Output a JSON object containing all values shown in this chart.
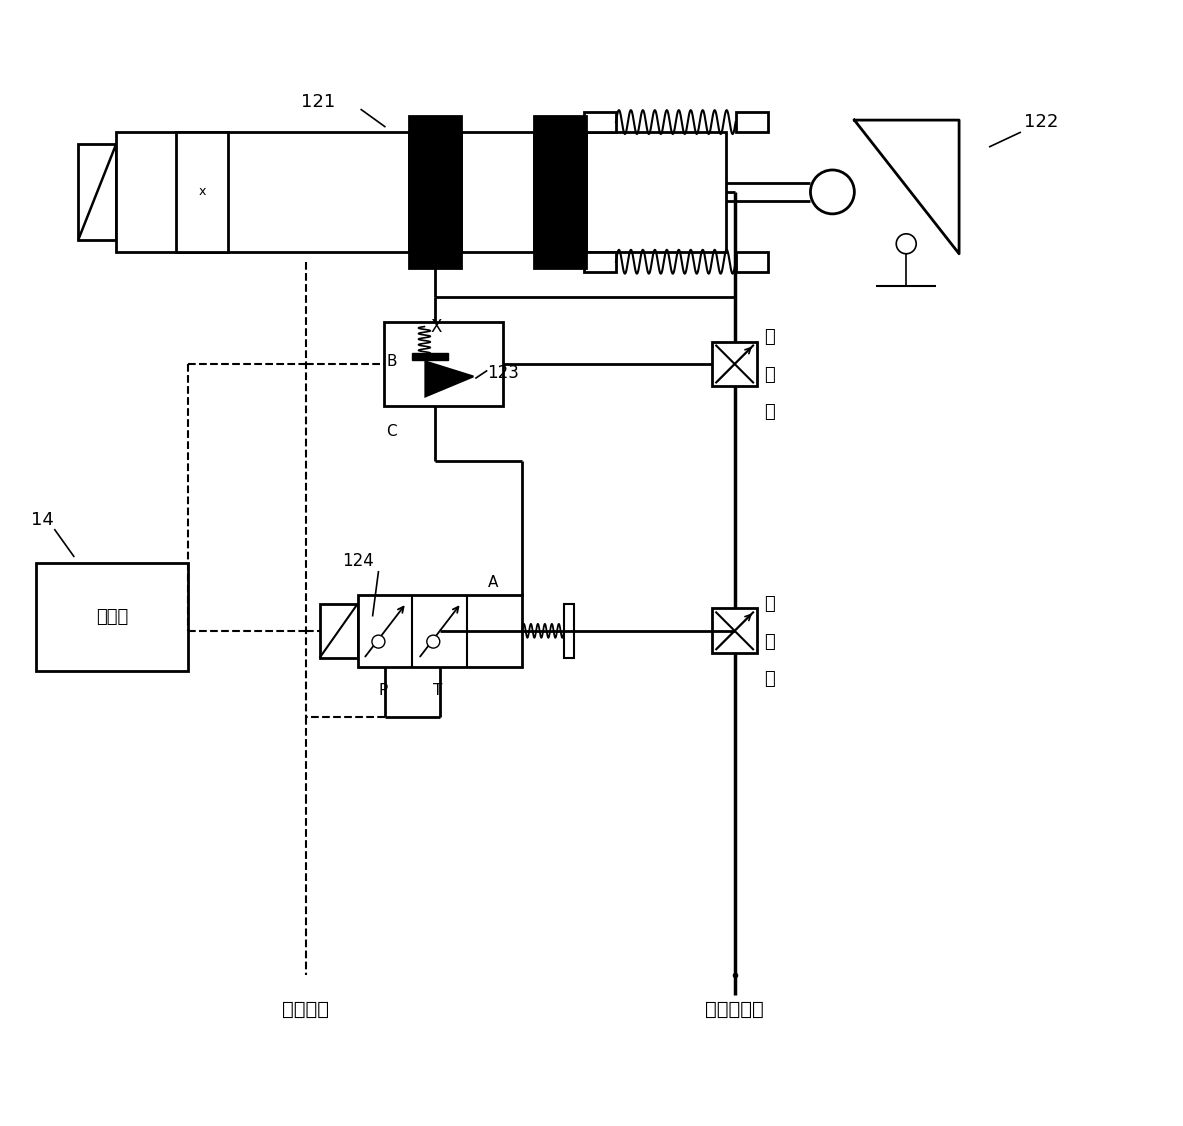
{
  "label_121": "121",
  "label_122": "122",
  "label_123": "123",
  "label_124": "124",
  "label_14": "14",
  "label_X": "X",
  "label_A": "A",
  "label_B": "B",
  "label_C": "C",
  "label_P": "P",
  "label_T": "T",
  "label_controller": "控制器",
  "label_return_line": "回油管路",
  "label_protect_line": "保护油管路",
  "label_throttle1": "节流口",
  "label_throttle2": "节流口",
  "bg_color": "#ffffff",
  "lc": "#000000",
  "lw": 2.0,
  "lwd": 1.5,
  "fig_w": 11.83,
  "fig_h": 11.26
}
